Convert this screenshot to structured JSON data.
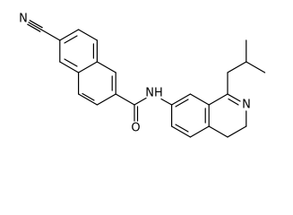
{
  "atoms": {
    "nitrile_n": "N",
    "carbonyl_o": "O",
    "amide_nh": "NH",
    "ring_n": "N"
  }
}
